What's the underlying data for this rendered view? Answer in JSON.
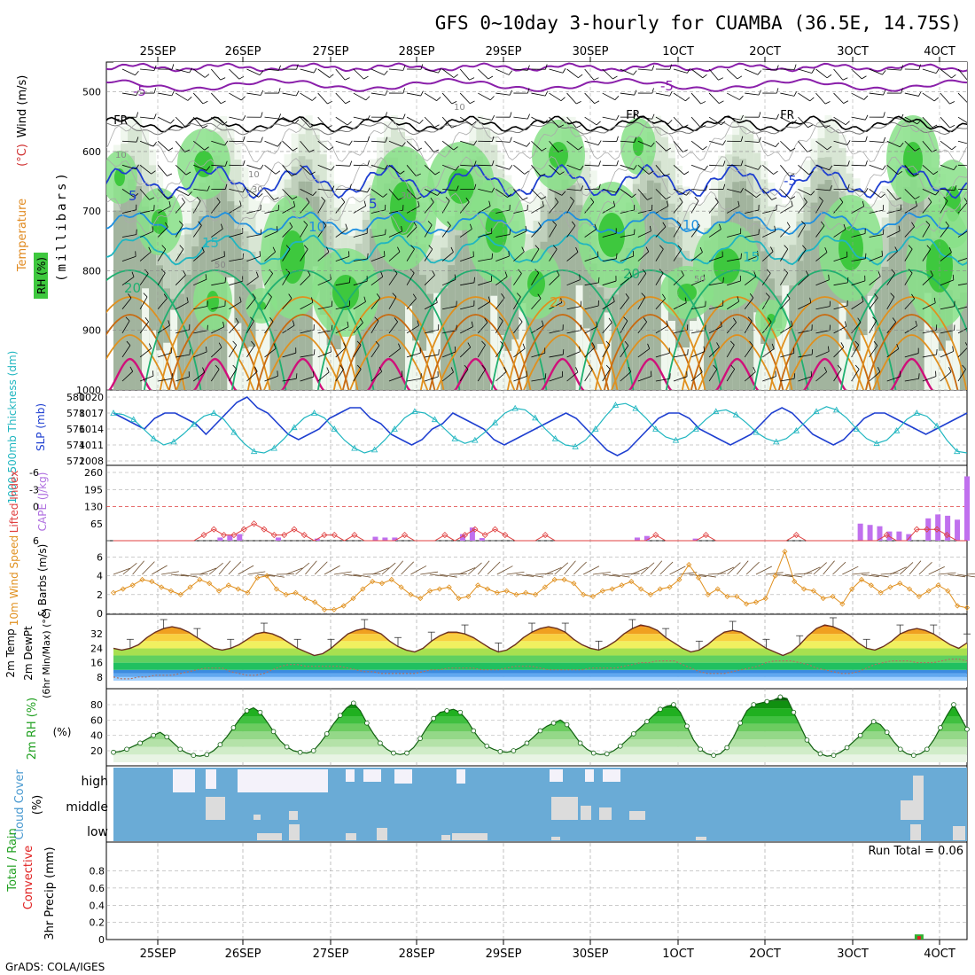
{
  "chart_data": {
    "type": "meteogram",
    "title": "GFS 0~10day 3-hourly for CUAMBA (36.5E, 14.75S)",
    "credit": "GrADS: COLA/IGES",
    "date_labels": [
      "25SEP",
      "26SEP",
      "27SEP",
      "28SEP",
      "29SEP",
      "30SEP",
      "1OCT",
      "2OCT",
      "3OCT",
      "4OCT"
    ],
    "top_panel": {
      "ylabel": "(millibars)",
      "ylabel_parts": {
        "wind": "Wind (m/s)",
        "temperature": "Temperature",
        "temp_unit": "(°C)",
        "rh": "RH (%)"
      },
      "y_ticks": [
        500,
        600,
        700,
        800,
        900,
        1000
      ],
      "freezing_labels": [
        "FR",
        "FR",
        "FR"
      ],
      "temp_contour_labels": [
        "-5",
        "-5",
        "-5",
        "5",
        "5",
        "10",
        "10",
        "15",
        "15",
        "20",
        "20",
        "25"
      ],
      "rh_contour_labels": [
        "10",
        "10",
        "10",
        "30",
        "30",
        "50",
        "50"
      ],
      "rh_colors": [
        "#f0f7ee",
        "#d8e6d4",
        "#c0d0bc",
        "#a2b49e",
        "#88e088",
        "#3ec83e"
      ],
      "colors": {
        "purple": "#8a1faa",
        "blue_dark": "#1e3fd0",
        "blue_mid": "#1e90e0",
        "teal": "#20b6c0",
        "green": "#20b070",
        "orange": "#e0901e",
        "dark_orange": "#c86a10",
        "magenta": "#d0107a"
      }
    },
    "thickness_panel": {
      "ylabel_left": "1000-500mb Thickness (dm)",
      "ylabel_right": "SLP (mb)",
      "left_ticks": [
        572,
        574,
        576,
        578,
        580
      ],
      "right_ticks": [
        1008,
        1011,
        1014,
        1017,
        1020
      ],
      "slp": [
        1017,
        1016,
        1015,
        1014,
        1016,
        1017,
        1017,
        1016,
        1015,
        1013,
        1015,
        1017,
        1019,
        1020,
        1018,
        1017,
        1015,
        1013,
        1012,
        1013,
        1014,
        1016,
        1017,
        1018,
        1018,
        1016,
        1015,
        1013,
        1012,
        1011,
        1012,
        1014,
        1015,
        1017,
        1016,
        1015,
        1014,
        1012,
        1011,
        1012,
        1013,
        1014,
        1015,
        1016,
        1017,
        1016,
        1014,
        1012,
        1010,
        1009,
        1010,
        1012,
        1014,
        1016,
        1017,
        1017,
        1016,
        1014,
        1013,
        1012,
        1011,
        1012,
        1013,
        1015,
        1017,
        1018,
        1017,
        1015,
        1013,
        1012,
        1011,
        1012,
        1014,
        1016,
        1017,
        1017,
        1016,
        1015,
        1014,
        1013,
        1014,
        1015,
        1016,
        1017
      ],
      "thickness": [
        578.0,
        577.8,
        577.2,
        576.0,
        574.8,
        574.0,
        574.4,
        575.4,
        576.6,
        577.6,
        578.0,
        577.2,
        575.6,
        574.2,
        573.2,
        573.0,
        573.6,
        574.8,
        576.2,
        577.4,
        578.0,
        577.4,
        576.0,
        574.6,
        573.6,
        573.0,
        573.4,
        574.6,
        576.0,
        577.4,
        578.2,
        578.0,
        577.2,
        576.0,
        574.8,
        574.2,
        574.6,
        575.6,
        576.8,
        578.0,
        578.6,
        578.4,
        577.4,
        576.0,
        574.8,
        574.0,
        573.8,
        574.6,
        576.0,
        577.6,
        579.0,
        579.2,
        578.6,
        577.4,
        576.0,
        575.0,
        574.6,
        575.0,
        576.0,
        577.2,
        578.2,
        578.4,
        577.8,
        576.8,
        575.6,
        574.8,
        574.4,
        574.8,
        575.8,
        577.0,
        578.2,
        578.8,
        578.4,
        577.4,
        576.0,
        574.8,
        574.2,
        574.6,
        575.8,
        577.2,
        578.0,
        577.6,
        576.4,
        574.6,
        573.2,
        573.0
      ]
    },
    "li_panel": {
      "ylabel_left": "Lifted Index",
      "ylabel_right": "CAPE (J/kg)",
      "left_ticks": [
        6,
        0,
        -3,
        -6
      ],
      "left_tick_labels": [
        "6",
        "0",
        "-3",
        "-6"
      ],
      "right_ticks": [
        65,
        130,
        195,
        260
      ],
      "lifted_index": [
        6,
        6,
        6,
        6,
        6,
        6,
        6,
        6,
        6,
        5,
        4,
        5,
        5,
        4,
        3,
        4,
        5,
        5,
        4,
        5,
        6,
        5,
        5,
        6,
        5,
        6,
        6,
        6,
        6,
        5,
        6,
        6,
        6,
        5,
        6,
        5,
        4,
        5,
        4,
        5,
        6,
        6,
        6,
        5,
        6,
        6,
        6,
        6,
        6,
        6,
        6,
        6,
        6,
        6,
        5,
        6,
        6,
        6,
        6,
        5,
        6,
        6,
        6,
        6,
        6,
        6,
        6,
        6,
        5,
        6,
        6,
        6,
        6,
        6,
        6,
        6,
        6,
        5,
        6,
        6,
        4,
        4,
        4,
        5,
        6,
        6
      ],
      "cape": [
        0,
        0,
        0,
        0,
        0,
        0,
        0,
        0,
        0,
        0,
        0,
        12,
        20,
        25,
        0,
        0,
        0,
        12,
        0,
        0,
        0,
        8,
        0,
        0,
        0,
        0,
        0,
        15,
        12,
        12,
        0,
        0,
        0,
        0,
        0,
        0,
        25,
        50,
        10,
        0,
        0,
        0,
        0,
        0,
        0,
        0,
        0,
        0,
        0,
        0,
        0,
        0,
        0,
        0,
        12,
        18,
        0,
        0,
        0,
        0,
        8,
        0,
        0,
        0,
        0,
        0,
        0,
        0,
        0,
        0,
        0,
        0,
        0,
        0,
        0,
        0,
        0,
        65,
        60,
        55,
        35,
        35,
        25,
        0,
        85,
        100,
        95,
        80,
        245
      ]
    },
    "wind_panel": {
      "ylabel_left": "10m Wind Speed",
      "ylabel_right": "& Barbs (m/s)",
      "ticks": [
        0,
        2,
        4,
        6
      ],
      "speed": [
        2.2,
        2.6,
        3.0,
        3.6,
        3.4,
        2.8,
        2.4,
        2.0,
        2.8,
        3.6,
        3.2,
        2.4,
        3.0,
        2.6,
        2.2,
        3.8,
        4.0,
        2.6,
        2.0,
        2.2,
        1.6,
        1.2,
        0.4,
        0.4,
        0.8,
        1.6,
        2.6,
        3.4,
        3.2,
        3.6,
        2.8,
        2.0,
        1.6,
        2.4,
        2.6,
        2.8,
        1.6,
        1.8,
        3.0,
        2.6,
        2.2,
        2.4,
        2.0,
        2.2,
        2.0,
        2.8,
        3.6,
        3.6,
        3.2,
        2.0,
        1.8,
        2.4,
        2.6,
        3.0,
        3.4,
        2.6,
        2.0,
        2.6,
        2.8,
        3.6,
        5.2,
        3.8,
        2.0,
        2.6,
        1.8,
        1.8,
        1.0,
        1.2,
        1.6,
        4.0,
        6.6,
        3.4,
        2.6,
        2.4,
        1.6,
        1.8,
        1.0,
        2.6,
        3.6,
        3.0,
        2.2,
        2.8,
        3.2,
        2.6,
        1.8,
        2.4,
        3.0,
        2.4,
        0.8,
        0.6
      ]
    },
    "temp_panel": {
      "ylabel_left": "2m Temp",
      "ylabel_mid": "2m DewPt",
      "ylabel_right": "(6hr Min/Max) (°C)",
      "ticks": [
        8,
        16,
        24,
        32
      ],
      "temperature": [
        24,
        23,
        24,
        26,
        30,
        33,
        35,
        36,
        35,
        33,
        30,
        27,
        24,
        23,
        24,
        26,
        29,
        32,
        33,
        32,
        30,
        27,
        24,
        22,
        20,
        21,
        24,
        28,
        32,
        34,
        35,
        34,
        32,
        28,
        25,
        23,
        22,
        24,
        28,
        31,
        33,
        33,
        32,
        30,
        27,
        24,
        22,
        23,
        26,
        30,
        33,
        35,
        36,
        35,
        33,
        29,
        26,
        24,
        23,
        25,
        28,
        32,
        35,
        37,
        36,
        34,
        30,
        27,
        24,
        22,
        23,
        26,
        30,
        33,
        34,
        33,
        30,
        27,
        24,
        22,
        20,
        22,
        26,
        31,
        35,
        37,
        36,
        34,
        31,
        27,
        24,
        23,
        25,
        28,
        32,
        34,
        35,
        34,
        32,
        29,
        26,
        24,
        27
      ],
      "dewpoint": [
        8,
        7,
        7,
        8,
        8,
        9,
        9,
        9,
        10,
        11,
        12,
        13,
        13,
        13,
        11,
        10,
        9,
        9,
        10,
        12,
        14,
        15,
        15,
        14,
        14,
        14,
        14,
        14,
        13,
        12,
        11,
        11,
        10,
        10,
        10,
        10,
        10,
        11,
        12,
        12,
        13,
        13,
        13,
        13,
        12,
        12,
        12,
        13,
        14,
        14,
        14,
        13,
        12,
        12,
        12,
        12,
        12,
        13,
        13,
        13,
        13,
        14,
        15,
        16,
        16,
        17,
        17,
        17,
        15,
        13,
        11,
        10,
        10,
        10,
        11,
        12,
        13,
        14,
        16,
        17,
        17,
        17,
        16,
        15,
        13,
        12,
        11,
        10,
        10,
        11,
        13,
        15,
        16,
        17,
        17,
        17,
        16,
        16,
        16,
        17,
        18,
        18,
        17
      ],
      "band_colors": [
        "#ffffff",
        "#a0d0ff",
        "#60a8f0",
        "#3c8ce0",
        "#20c060",
        "#60d060",
        "#a8e050",
        "#f0f060",
        "#f8d040",
        "#f0a020",
        "#e86010",
        "#d02010"
      ]
    },
    "rh_panel": {
      "ylabel": "2m RH (%)",
      "ticks": [
        20,
        40,
        60,
        80
      ],
      "rh": [
        18,
        19,
        22,
        26,
        30,
        35,
        40,
        44,
        38,
        30,
        22,
        17,
        14,
        13,
        15,
        20,
        28,
        38,
        50,
        62,
        72,
        76,
        70,
        58,
        45,
        33,
        25,
        20,
        18,
        17,
        20,
        30,
        42,
        55,
        66,
        76,
        82,
        72,
        56,
        42,
        30,
        22,
        17,
        15,
        17,
        24,
        36,
        50,
        62,
        70,
        72,
        74,
        70,
        60,
        46,
        34,
        26,
        22,
        19,
        18,
        20,
        24,
        30,
        38,
        46,
        52,
        56,
        60,
        54,
        42,
        30,
        22,
        17,
        15,
        16,
        20,
        26,
        34,
        42,
        50,
        58,
        66,
        74,
        78,
        80,
        70,
        52,
        34,
        22,
        16,
        14,
        16,
        24,
        38,
        56,
        72,
        80,
        82,
        84,
        86,
        90,
        88,
        70,
        52,
        34,
        22,
        16,
        13,
        14,
        18,
        24,
        32,
        40,
        50,
        58,
        54,
        44,
        32,
        22,
        16,
        14,
        16,
        22,
        34,
        50,
        66,
        80,
        64,
        48
      ]
    },
    "cloud_panel": {
      "ylabel_left": "Cloud Cover",
      "ylabel_right": "(%)",
      "level_labels": [
        "high",
        "middle",
        "low"
      ]
    },
    "precip_panel": {
      "ylabel_left": "Total / Rain",
      "ylabel_left2": "Convective",
      "ylabel_right": "3hr Precip (mm)",
      "ticks": [
        0,
        0.2,
        0.4,
        0.6,
        0.8
      ],
      "run_total_label": "Run Total = 0.06",
      "bars": [
        {
          "index": 84,
          "total": 0.06,
          "convective": 0.04
        }
      ]
    }
  }
}
